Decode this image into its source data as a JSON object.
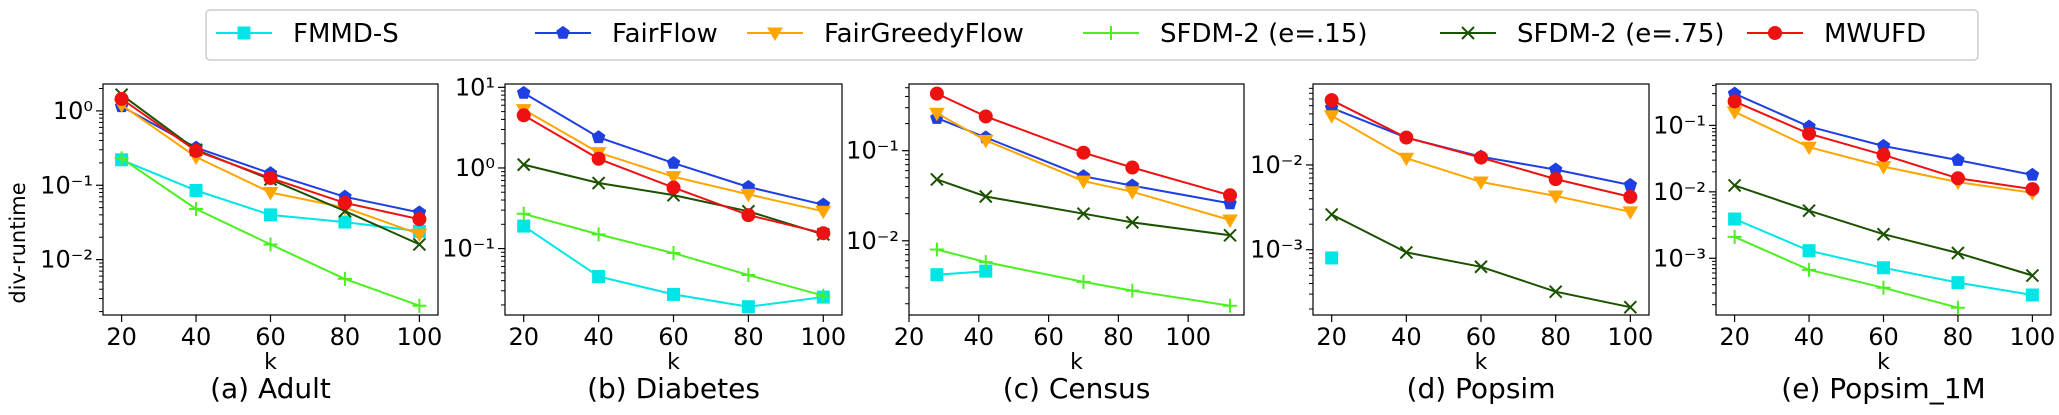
{
  "figure": {
    "ylabel": "div-runtime",
    "xlabel": "k"
  },
  "legend": {
    "placement": "top-center",
    "entries": [
      {
        "name": "FMMD-S",
        "color": "#00e5e5",
        "marker": "square"
      },
      {
        "name": "FairFlow",
        "color": "#1f3fe0",
        "marker": "pentagon"
      },
      {
        "name": "FairGreedyFlow",
        "color": "#ffa500",
        "marker": "triangle-down"
      },
      {
        "name": "SFDM-2 (e=.15)",
        "color": "#4cf020",
        "marker": "plus"
      },
      {
        "name": "SFDM-2 (e=.75)",
        "color": "#1a5200",
        "marker": "x"
      },
      {
        "name": "MWUFD",
        "color": "#ee1111",
        "marker": "circle"
      }
    ]
  },
  "chart_data": [
    {
      "type": "line",
      "title": "(a) Adult",
      "xlabel": "k",
      "ylabel": "div-runtime",
      "yscale": "log",
      "xlim": [
        15,
        105
      ],
      "ylim": [
        0.0018,
        2.3
      ],
      "xticks": [
        20,
        40,
        60,
        80,
        100
      ],
      "xtick_labels": [
        "20",
        "40",
        "60",
        "80",
        "100"
      ],
      "yticks": [
        0.01,
        0.1,
        1
      ],
      "ytick_labels": [
        "10^-2",
        "10^-1",
        "10^0"
      ],
      "series": [
        {
          "name": "FMMD-S",
          "x": [
            20,
            40,
            60,
            80,
            100
          ],
          "y": [
            0.22,
            0.085,
            0.04,
            0.032,
            0.024
          ]
        },
        {
          "name": "FairFlow",
          "x": [
            20,
            40,
            60,
            80,
            100
          ],
          "y": [
            1.15,
            0.32,
            0.145,
            0.07,
            0.043
          ]
        },
        {
          "name": "FairGreedyFlow",
          "x": [
            20,
            40,
            60,
            80,
            100
          ],
          "y": [
            1.2,
            0.24,
            0.08,
            0.05,
            0.022
          ]
        },
        {
          "name": "SFDM-2 (e=.15)",
          "x": [
            20,
            40,
            60,
            80,
            100
          ],
          "y": [
            0.23,
            0.048,
            0.016,
            0.0055,
            0.0024
          ]
        },
        {
          "name": "SFDM-2 (e=.75)",
          "x": [
            20,
            40,
            60,
            80,
            100
          ],
          "y": [
            1.65,
            0.3,
            0.12,
            0.045,
            0.016
          ]
        },
        {
          "name": "MWUFD",
          "x": [
            20,
            40,
            60,
            80,
            100
          ],
          "y": [
            1.45,
            0.29,
            0.125,
            0.058,
            0.035
          ]
        }
      ]
    },
    {
      "type": "line",
      "title": "(b) Diabetes",
      "xlabel": "k",
      "ylabel": "",
      "yscale": "log",
      "xlim": [
        15,
        105
      ],
      "ylim": [
        0.015,
        11
      ],
      "xticks": [
        20,
        40,
        60,
        80,
        100
      ],
      "xtick_labels": [
        "20",
        "40",
        "60",
        "80",
        "100"
      ],
      "yticks": [
        0.1,
        1,
        10
      ],
      "ytick_labels": [
        "10^-1",
        "10^0",
        "10^1"
      ],
      "series": [
        {
          "name": "FMMD-S",
          "x": [
            20,
            40,
            60,
            80,
            100
          ],
          "y": [
            0.19,
            0.045,
            0.027,
            0.019,
            0.025
          ]
        },
        {
          "name": "FairFlow",
          "x": [
            20,
            40,
            60,
            80,
            100
          ],
          "y": [
            8.5,
            2.4,
            1.15,
            0.58,
            0.35
          ]
        },
        {
          "name": "FairGreedyFlow",
          "x": [
            20,
            40,
            60,
            80,
            100
          ],
          "y": [
            5.3,
            1.55,
            0.78,
            0.47,
            0.29
          ]
        },
        {
          "name": "SFDM-2 (e=.15)",
          "x": [
            20,
            40,
            60,
            80,
            100
          ],
          "y": [
            0.27,
            0.15,
            0.088,
            0.047,
            0.026
          ]
        },
        {
          "name": "SFDM-2 (e=.75)",
          "x": [
            20,
            40,
            60,
            80,
            100
          ],
          "y": [
            1.1,
            0.65,
            0.46,
            0.29,
            0.15
          ]
        },
        {
          "name": "MWUFD",
          "x": [
            20,
            40,
            60,
            80,
            100
          ],
          "y": [
            4.5,
            1.3,
            0.57,
            0.26,
            0.155
          ]
        }
      ]
    },
    {
      "type": "line",
      "title": "(c) Census",
      "xlabel": "k",
      "ylabel": "",
      "yscale": "log",
      "xlim": [
        20,
        116
      ],
      "ylim": [
        0.0015,
        0.55
      ],
      "xticks": [
        20,
        40,
        60,
        80,
        100
      ],
      "xtick_labels": [
        "20",
        "40",
        "60",
        "80",
        "100"
      ],
      "yticks": [
        0.01,
        0.1
      ],
      "ytick_labels": [
        "10^-2",
        "10^-1"
      ],
      "series": [
        {
          "name": "FMMD-S",
          "x": [
            28,
            42
          ],
          "y": [
            0.0042,
            0.0046
          ]
        },
        {
          "name": "FairFlow",
          "x": [
            28,
            42,
            70,
            84,
            112
          ],
          "y": [
            0.23,
            0.14,
            0.052,
            0.041,
            0.026
          ]
        },
        {
          "name": "FairGreedyFlow",
          "x": [
            28,
            42,
            70,
            84,
            112
          ],
          "y": [
            0.26,
            0.13,
            0.046,
            0.035,
            0.017
          ]
        },
        {
          "name": "SFDM-2 (e=.15)",
          "x": [
            28,
            42,
            70,
            84,
            112
          ],
          "y": [
            0.008,
            0.0058,
            0.0035,
            0.0028,
            0.0019
          ]
        },
        {
          "name": "SFDM-2 (e=.75)",
          "x": [
            28,
            42,
            70,
            84,
            112
          ],
          "y": [
            0.048,
            0.031,
            0.02,
            0.016,
            0.0115
          ]
        },
        {
          "name": "MWUFD",
          "x": [
            28,
            42,
            70,
            84,
            112
          ],
          "y": [
            0.43,
            0.24,
            0.095,
            0.065,
            0.032
          ]
        }
      ]
    },
    {
      "type": "line",
      "title": "(d) Popsim",
      "xlabel": "k",
      "ylabel": "",
      "yscale": "log",
      "xlim": [
        15,
        105
      ],
      "ylim": [
        0.00017,
        0.09
      ],
      "xticks": [
        20,
        40,
        60,
        80,
        100
      ],
      "xtick_labels": [
        "20",
        "40",
        "60",
        "80",
        "100"
      ],
      "yticks": [
        0.001,
        0.01
      ],
      "ytick_labels": [
        "10^-3",
        "10^-2"
      ],
      "series": [
        {
          "name": "FMMD-S",
          "x": [
            20
          ],
          "y": [
            0.0008
          ]
        },
        {
          "name": "FairFlow",
          "x": [
            20,
            40,
            60,
            80,
            100
          ],
          "y": [
            0.047,
            0.021,
            0.0125,
            0.0088,
            0.0058
          ]
        },
        {
          "name": "FairGreedyFlow",
          "x": [
            20,
            40,
            60,
            80,
            100
          ],
          "y": [
            0.038,
            0.012,
            0.0063,
            0.0043,
            0.0028
          ]
        },
        {
          "name": "SFDM-2 (e=.75)",
          "x": [
            20,
            40,
            60,
            80,
            100
          ],
          "y": [
            0.0026,
            0.00093,
            0.00063,
            0.00032,
            0.00021
          ]
        },
        {
          "name": "MWUFD",
          "x": [
            20,
            40,
            60,
            80,
            100
          ],
          "y": [
            0.058,
            0.021,
            0.0122,
            0.0068,
            0.0042
          ]
        }
      ]
    },
    {
      "type": "line",
      "title": "(e) Popsim_1M",
      "xlabel": "k",
      "ylabel": "",
      "yscale": "log",
      "xlim": [
        15,
        105
      ],
      "ylim": [
        0.00014,
        0.42
      ],
      "xticks": [
        20,
        40,
        60,
        80,
        100
      ],
      "xtick_labels": [
        "20",
        "40",
        "60",
        "80",
        "100"
      ],
      "yticks": [
        0.001,
        0.01,
        0.1
      ],
      "ytick_labels": [
        "10^-3",
        "10^-2",
        "10^-1"
      ],
      "series": [
        {
          "name": "FMMD-S",
          "x": [
            20,
            40,
            60,
            80,
            100
          ],
          "y": [
            0.0039,
            0.0013,
            0.00072,
            0.00043,
            0.00028
          ]
        },
        {
          "name": "FairFlow",
          "x": [
            20,
            40,
            60,
            80,
            100
          ],
          "y": [
            0.3,
            0.096,
            0.049,
            0.03,
            0.018
          ]
        },
        {
          "name": "FairGreedyFlow",
          "x": [
            20,
            40,
            60,
            80,
            100
          ],
          "y": [
            0.16,
            0.047,
            0.024,
            0.014,
            0.0097
          ]
        },
        {
          "name": "SFDM-2 (e=.15)",
          "x": [
            20,
            40,
            60,
            80
          ],
          "y": [
            0.0021,
            0.00067,
            0.00036,
            0.00018
          ]
        },
        {
          "name": "SFDM-2 (e=.75)",
          "x": [
            20,
            40,
            60,
            80,
            100
          ],
          "y": [
            0.0125,
            0.0052,
            0.0023,
            0.0012,
            0.00055
          ]
        },
        {
          "name": "MWUFD",
          "x": [
            20,
            40,
            60,
            80,
            100
          ],
          "y": [
            0.23,
            0.075,
            0.036,
            0.016,
            0.011
          ]
        }
      ]
    }
  ]
}
